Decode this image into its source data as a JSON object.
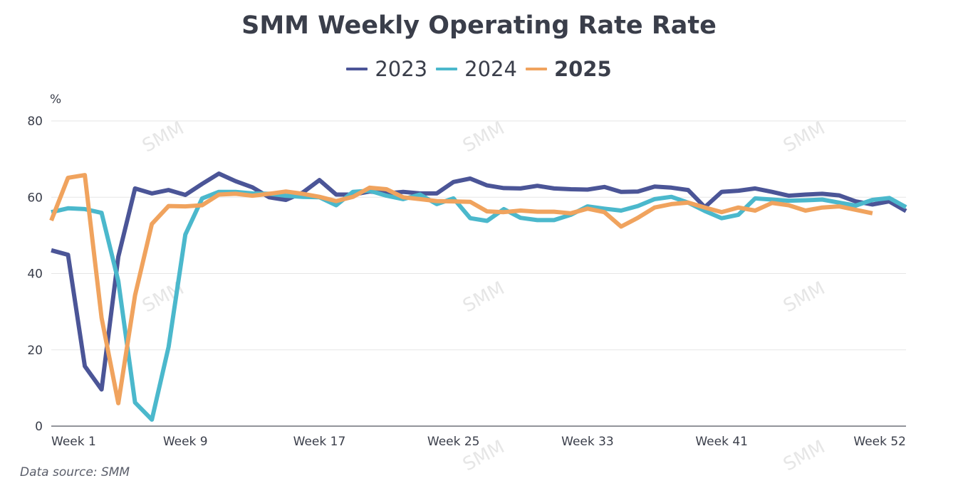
{
  "header": {
    "title": "SMM Weekly Operating Rate Rate"
  },
  "footer": {
    "source": "Data source:  SMM"
  },
  "watermark_text": "SMM",
  "colors": {
    "2023": "#4b5597",
    "2024": "#4bb8cc",
    "2025": "#f0a35e",
    "grid": "#e6e6e6",
    "axis": "#6e7079",
    "text": "#3a3e4a"
  },
  "chart_data": {
    "type": "line",
    "title": "SMM Weekly Operating Rate Rate",
    "xlabel": "",
    "ylabel": "%",
    "ylim": [
      0,
      80
    ],
    "yticks": [
      0,
      20,
      40,
      60,
      80
    ],
    "grid": true,
    "legend_position": "top-center",
    "x": [
      "Week 1",
      "Week 2",
      "Week 3",
      "Week 4",
      "Week 5",
      "Week 6",
      "Week 7",
      "Week 8",
      "Week 9",
      "Week 10",
      "Week 11",
      "Week 12",
      "Week 13",
      "Week 14",
      "Week 15",
      "Week 16",
      "Week 17",
      "Week 18",
      "Week 19",
      "Week 20",
      "Week 21",
      "Week 22",
      "Week 23",
      "Week 24",
      "Week 25",
      "Week 26",
      "Week 27",
      "Week 28",
      "Week 29",
      "Week 30",
      "Week 31",
      "Week 32",
      "Week 33",
      "Week 34",
      "Week 35",
      "Week 36",
      "Week 37",
      "Week 38",
      "Week 39",
      "Week 40",
      "Week 41",
      "Week 42",
      "Week 43",
      "Week 44",
      "Week 45",
      "Week 46",
      "Week 47",
      "Week 48",
      "Week 49",
      "Week 50",
      "Week 51",
      "Week 52"
    ],
    "xtick_labels": [
      "Week 1",
      "Week 9",
      "Week 17",
      "Week 25",
      "Week 33",
      "Week 41",
      "Week 52"
    ],
    "series": [
      {
        "name": "2023",
        "values": [
          46.1,
          44.9,
          15.7,
          9.6,
          44.4,
          62.3,
          61.0,
          61.9,
          60.6,
          63.5,
          66.2,
          64.2,
          62.6,
          60.0,
          59.3,
          61.2,
          64.5,
          60.7,
          60.7,
          61.5,
          61.0,
          61.4,
          61.0,
          61.0,
          64.0,
          64.9,
          63.1,
          62.4,
          62.3,
          63.0,
          62.3,
          62.1,
          62.0,
          62.7,
          61.4,
          61.5,
          62.8,
          62.5,
          61.9,
          57.4,
          61.4,
          61.7,
          62.3,
          61.4,
          60.4,
          60.7,
          60.9,
          60.5,
          58.9,
          58.1,
          58.9,
          56.4
        ]
      },
      {
        "name": "2024",
        "values": [
          56.1,
          57.1,
          56.9,
          55.9,
          38.0,
          6.2,
          1.7,
          20.8,
          50.2,
          59.7,
          61.4,
          61.4,
          61.0,
          60.9,
          60.4,
          60.1,
          60.0,
          57.9,
          61.4,
          61.7,
          60.4,
          59.5,
          60.7,
          58.2,
          59.7,
          54.5,
          53.8,
          56.9,
          54.6,
          54.0,
          54.0,
          55.4,
          57.6,
          57.0,
          56.5,
          57.7,
          59.5,
          60.1,
          58.6,
          56.4,
          54.5,
          55.4,
          59.7,
          59.4,
          59.1,
          59.2,
          59.4,
          58.6,
          57.8,
          59.3,
          59.8,
          57.4
        ]
      },
      {
        "name": "2025",
        "values": [
          53.9,
          65.1,
          65.8,
          28.4,
          6.0,
          34.3,
          53.0,
          57.7,
          57.6,
          57.9,
          60.7,
          60.9,
          60.4,
          60.9,
          61.5,
          60.9,
          60.1,
          59.0,
          60.1,
          62.5,
          62.1,
          60.0,
          59.5,
          59.0,
          58.9,
          58.8,
          56.3,
          56.1,
          56.5,
          56.2,
          56.2,
          55.8,
          57.0,
          56.1,
          52.3,
          54.6,
          57.3,
          58.2,
          58.6,
          57.3,
          56.1,
          57.3,
          56.5,
          58.5,
          57.9,
          56.5,
          57.3,
          57.6,
          56.7,
          55.8
        ]
      }
    ]
  }
}
